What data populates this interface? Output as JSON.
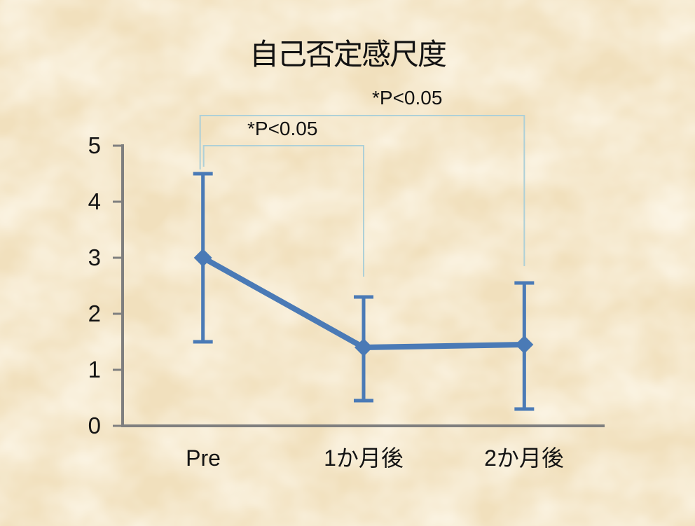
{
  "chart_data": {
    "type": "line",
    "title": "自己否定感尺度",
    "categories": [
      "Pre",
      "1か月後",
      "2か月後"
    ],
    "series": [
      {
        "name": "自己否定感尺度",
        "values": [
          3.0,
          1.4,
          1.45
        ],
        "error_bar_upper": [
          4.5,
          2.3,
          2.55
        ],
        "error_bar_lower": [
          1.5,
          0.45,
          0.3
        ],
        "marker": "diamond",
        "color": "#4a7ab6"
      }
    ],
    "xlabel": "",
    "ylabel": "",
    "ylim": [
      0,
      5
    ],
    "yticks": [
      5,
      4,
      3,
      2,
      1,
      0
    ],
    "grid": false,
    "legend": "none",
    "annotations": {
      "significance_brackets": [
        {
          "label": "*P<0.05",
          "from": "Pre",
          "to": "2か月後"
        },
        {
          "label": "*P<0.05",
          "from": "Pre",
          "to": "1か月後"
        }
      ]
    },
    "axis_color": "#7f7f7f",
    "bracket_color": "#aed0d7",
    "background": "#f2e1c0",
    "text_color": "#141414"
  }
}
